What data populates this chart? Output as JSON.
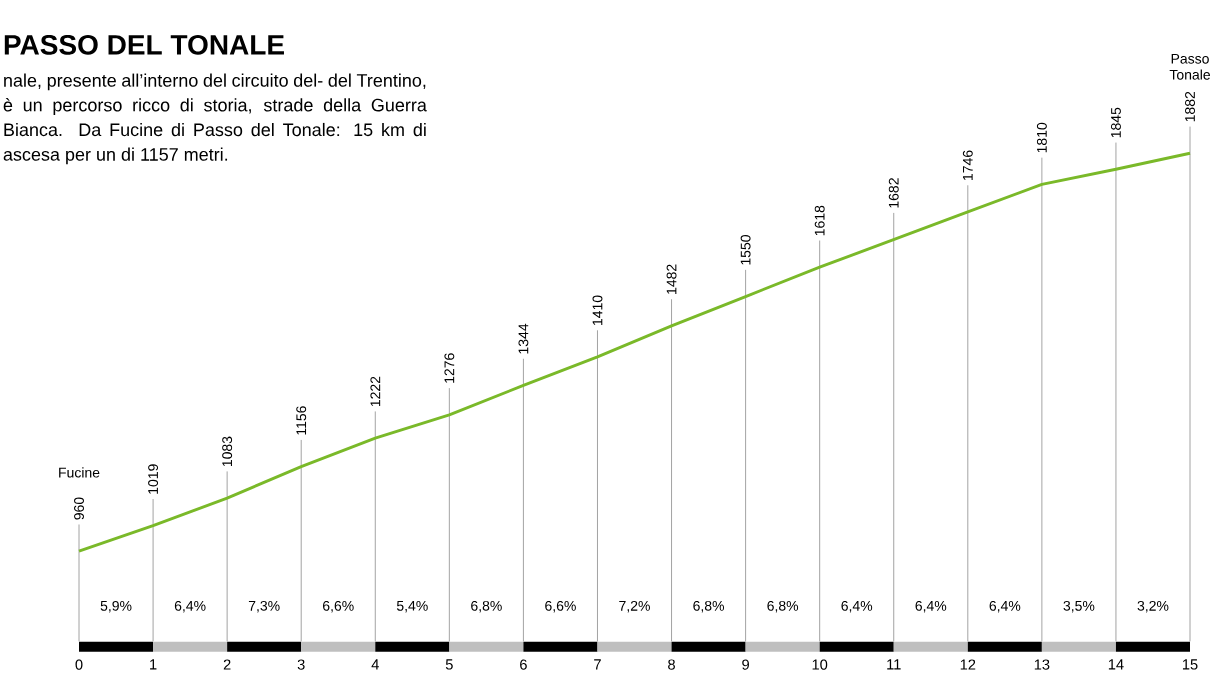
{
  "chart_data": {
    "type": "line",
    "title": "PASSO DEL TONALE",
    "subtitle": "nale, presente all’interno del circuito del- del Trentino, è un percorso ricco di storia, strade della Guerra Bianca. Da Fucine di Passo del Tonale: 15 km di ascesa per un di 1157 metri.",
    "x": [
      0,
      1,
      2,
      3,
      4,
      5,
      6,
      7,
      8,
      9,
      10,
      11,
      12,
      13,
      14,
      15
    ],
    "values": [
      960,
      1019,
      1083,
      1156,
      1222,
      1276,
      1344,
      1410,
      1482,
      1550,
      1618,
      1682,
      1746,
      1810,
      1845,
      1882
    ],
    "color": "#7ab929",
    "data_labels": true,
    "tick_labels": "x",
    "grid": "x",
    "xlim": [
      0,
      15
    ],
    "xticks": [
      0,
      1,
      2,
      3,
      4,
      5,
      6,
      7,
      8,
      9,
      10,
      11,
      12,
      13,
      14,
      15
    ],
    "annotations": [
      "Fucine",
      "Passo Tonale",
      "5,9%",
      "6,4%",
      "7,3%",
      "6,6%",
      "5,4%",
      "6,8%",
      "6,6%",
      "7,2%",
      "6,8%",
      "6,8%",
      "6,4%",
      "6,4%",
      "6,4%",
      "3,5%",
      "3,2%"
    ]
  }
}
